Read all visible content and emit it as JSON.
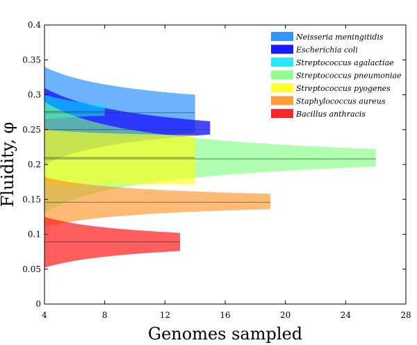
{
  "chart_data": {
    "type": "area",
    "xlabel": "Genomes sampled",
    "ylabel": "Fluidity, φ",
    "xlim": [
      4,
      28
    ],
    "ylim": [
      0,
      0.4
    ],
    "xticks": [
      "4",
      "8",
      "12",
      "16",
      "20",
      "24",
      "28"
    ],
    "yticks": [
      "0",
      "0.05",
      "0.1",
      "0.15",
      "0.2",
      "0.25",
      "0.3",
      "0.35",
      "0.4"
    ],
    "grid": false,
    "legend_position": "top-right",
    "series": [
      {
        "name": "Neisseria meningitidis",
        "color": "#1e88ff",
        "opacity": 0.65,
        "mean": 0.274,
        "x_end": 14,
        "upper": [
          [
            4,
            0.34
          ],
          [
            14,
            0.3
          ]
        ],
        "lower": [
          [
            4,
            0.205
          ],
          [
            14,
            0.245
          ]
        ]
      },
      {
        "name": "Escherichia coli",
        "color": "#1a1aff",
        "opacity": 0.8,
        "mean": 0.25,
        "x_end": 15,
        "upper": [
          [
            4,
            0.31
          ],
          [
            15,
            0.262
          ]
        ],
        "lower": [
          [
            4,
            0.2
          ],
          [
            15,
            0.243
          ]
        ]
      },
      {
        "name": "Streptococcus agalactiae",
        "color": "#00e5ff",
        "opacity": 0.6,
        "mean": 0.276,
        "x_end": 8,
        "upper": [
          [
            4,
            0.3
          ],
          [
            8,
            0.285
          ]
        ],
        "lower": [
          [
            4,
            0.265
          ],
          [
            8,
            0.27
          ]
        ]
      },
      {
        "name": "Streptococcus pneumoniae",
        "color": "#7cff7c",
        "opacity": 0.6,
        "mean": 0.208,
        "x_end": 26,
        "upper": [
          [
            4,
            0.29
          ],
          [
            26,
            0.222
          ]
        ],
        "lower": [
          [
            4,
            0.13
          ],
          [
            26,
            0.197
          ]
        ]
      },
      {
        "name": "Streptococcus pyogenes",
        "color": "#ffff1a",
        "opacity": 0.65,
        "mean": 0.21,
        "x_end": 14,
        "upper": [
          [
            4,
            0.25
          ],
          [
            14,
            0.242
          ]
        ],
        "lower": [
          [
            4,
            0.17
          ],
          [
            14,
            0.172
          ]
        ]
      },
      {
        "name": "Staphylococcus aureus",
        "color": "#ff8c1a",
        "opacity": 0.6,
        "mean": 0.146,
        "x_end": 19,
        "upper": [
          [
            4,
            0.182
          ],
          [
            19,
            0.158
          ]
        ],
        "lower": [
          [
            4,
            0.11
          ],
          [
            19,
            0.136
          ]
        ]
      },
      {
        "name": "Bacillus anthracis",
        "color": "#ff2020",
        "opacity": 0.72,
        "mean": 0.089,
        "x_end": 13,
        "upper": [
          [
            4,
            0.125
          ],
          [
            13,
            0.102
          ]
        ],
        "lower": [
          [
            4,
            0.052
          ],
          [
            13,
            0.076
          ]
        ]
      }
    ]
  }
}
